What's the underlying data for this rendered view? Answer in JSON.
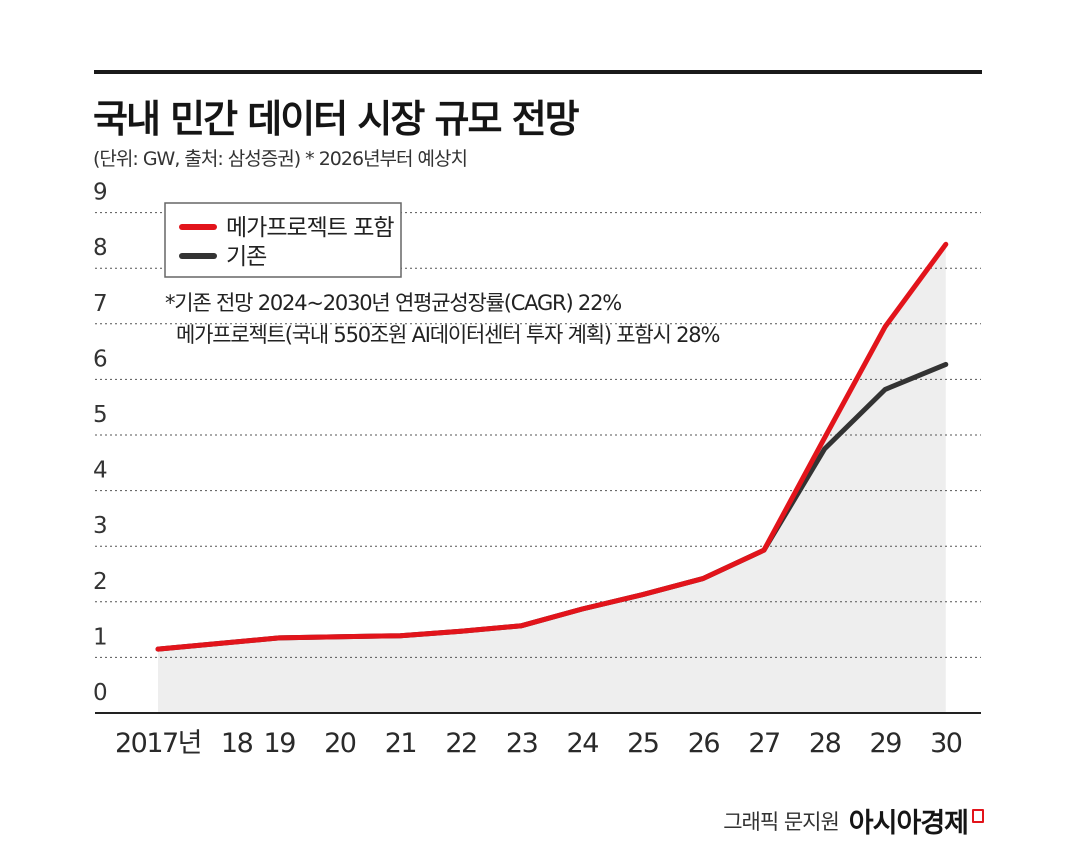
{
  "title": "국내 민간 데이터 시장 규모 전망",
  "subtitle": "(단위: GW, 출처: 삼성증권)   * 2026년부터 예상치",
  "credit": {
    "graphic": "그래픽 문지원",
    "brand": "아시아경제"
  },
  "colors": {
    "mega": "#e2141b",
    "base": "#333333",
    "area": "#eeeeee",
    "grid": "#555555"
  },
  "chart_data": {
    "type": "line",
    "categories": [
      "2017년",
      "18",
      "19",
      "20",
      "21",
      "22",
      "23",
      "24",
      "25",
      "26",
      "27",
      "28",
      "29",
      "30"
    ],
    "ylim": [
      0,
      9
    ],
    "yticks": [
      "0",
      "1",
      "2",
      "3",
      "4",
      "5",
      "6",
      "7",
      "8",
      "9"
    ],
    "grid": "horizontal dotted",
    "legend_position": "top-left",
    "series": [
      {
        "name": "메가프로젝트 포함",
        "color": "#e2141b",
        "values": [
          1.15,
          1.25,
          1.35,
          1.37,
          1.39,
          1.47,
          1.57,
          1.87,
          2.13,
          2.42,
          2.93,
          4.95,
          6.95,
          8.43
        ]
      },
      {
        "name": "기존",
        "color": "#333333",
        "values": [
          1.15,
          1.25,
          1.35,
          1.37,
          1.39,
          1.47,
          1.57,
          1.87,
          2.13,
          2.42,
          2.93,
          4.75,
          5.82,
          6.27
        ]
      }
    ],
    "annotations": [
      "*기존 전망 2024~2030년 연평균성장률(CAGR) 22%",
      "메가프로젝트(국내 550조원 AI데이터센터 투자 계획) 포함시 28%"
    ]
  }
}
